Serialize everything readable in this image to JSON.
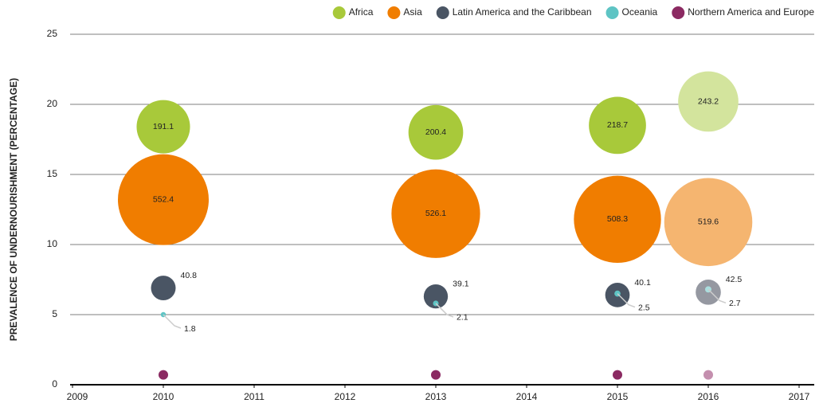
{
  "chart_data": {
    "type": "bubble",
    "ylabel": "PREVALENCE OF UNDERNOURISHMENT (PERCENTAGE)",
    "x": [
      2010,
      2013,
      2015,
      2016
    ],
    "xlim": [
      2009,
      2017
    ],
    "xticks": [
      2009,
      2010,
      2011,
      2012,
      2013,
      2014,
      2015,
      2016,
      2017
    ],
    "ylim": [
      0,
      25
    ],
    "yticks": [
      0,
      5,
      10,
      15,
      20,
      25
    ],
    "grid": true,
    "legend": "top-right",
    "series": [
      {
        "name": "Africa",
        "color": "#a8c93a",
        "colors": [
          "#a8c93a",
          "#a8c93a",
          "#a8c93a",
          "#d3e49d"
        ],
        "values": [
          18.4,
          18.0,
          18.5,
          20.2
        ],
        "sizes": [
          191.1,
          200.4,
          218.7,
          243.2
        ]
      },
      {
        "name": "Asia",
        "color": "#f07d00",
        "colors": [
          "#f07d00",
          "#f07d00",
          "#f07d00",
          "#f5b570"
        ],
        "values": [
          13.2,
          12.2,
          11.8,
          11.6
        ],
        "sizes": [
          552.4,
          526.1,
          508.3,
          519.6
        ]
      },
      {
        "name": "Latin America and the Caribbean",
        "color": "#4a5564",
        "colors": [
          "#4a5564",
          "#4a5564",
          "#4a5564",
          "#9598a1"
        ],
        "values": [
          6.9,
          6.3,
          6.4,
          6.6
        ],
        "sizes": [
          40.8,
          39.1,
          40.1,
          42.5
        ]
      },
      {
        "name": "Oceania",
        "color": "#5ec4c4",
        "colors": [
          "#5ec4c4",
          "#5ec4c4",
          "#5ec4c4",
          "#aadede"
        ],
        "values": [
          5.0,
          5.8,
          6.5,
          6.8
        ],
        "sizes": [
          1.8,
          2.1,
          2.5,
          2.7
        ]
      },
      {
        "name": "Northern America and Europe",
        "color": "#8b2a62",
        "colors": [
          "#8b2a62",
          "#8b2a62",
          "#8b2a62",
          "#c48fae"
        ],
        "values": [
          0.7,
          0.7,
          0.7,
          0.7
        ]
      }
    ]
  }
}
